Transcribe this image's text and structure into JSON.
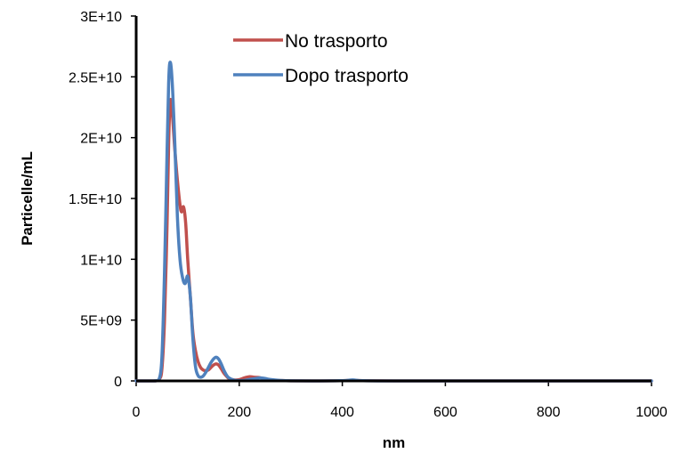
{
  "chart_data": {
    "type": "line",
    "title": "",
    "xlabel": "nm",
    "ylabel": "Particelle/mL",
    "xlim": [
      0,
      1000
    ],
    "ylim": [
      0,
      30000000000
    ],
    "x_ticks": [
      0,
      200,
      400,
      600,
      800,
      1000
    ],
    "x_tick_labels": [
      "0",
      "200",
      "400",
      "600",
      "800",
      "1000"
    ],
    "y_ticks": [
      0,
      5000000000,
      10000000000,
      15000000000,
      20000000000,
      25000000000,
      30000000000
    ],
    "y_tick_labels": [
      "0",
      "5E+09",
      "1E+10",
      "1.5E+10",
      "2E+10",
      "2.5E+10",
      "3E+10"
    ],
    "grid": false,
    "legend_position": "top-center",
    "series": [
      {
        "name": "No trasporto",
        "color": "#c0504d",
        "x": [
          0,
          30,
          40,
          45,
          50,
          55,
          60,
          63,
          66,
          70,
          75,
          80,
          85,
          88,
          92,
          96,
          100,
          105,
          110,
          115,
          120,
          125,
          130,
          135,
          140,
          145,
          150,
          155,
          160,
          165,
          170,
          175,
          180,
          190,
          200,
          210,
          220,
          230,
          240,
          250,
          260,
          280,
          300,
          350,
          400,
          420,
          440,
          500,
          600,
          700,
          800,
          900,
          1000
        ],
        "y": [
          0,
          0,
          20000000,
          150000000,
          1000000000,
          5000000000,
          13000000000,
          19500000000,
          23000000000,
          22000000000,
          19000000000,
          16500000000,
          14500000000,
          13900000000,
          14300000000,
          13000000000,
          10000000000,
          7000000000,
          4000000000,
          2500000000,
          1600000000,
          1100000000,
          900000000,
          850000000,
          900000000,
          1100000000,
          1300000000,
          1400000000,
          1300000000,
          1000000000,
          650000000,
          400000000,
          200000000,
          80000000,
          100000000,
          250000000,
          350000000,
          300000000,
          270000000,
          150000000,
          60000000,
          30000000,
          10000000,
          0,
          20000000,
          40000000,
          20000000,
          0,
          0,
          0,
          0,
          0,
          0
        ]
      },
      {
        "name": "Dopo trasporto",
        "color": "#4f81bd",
        "x": [
          0,
          30,
          40,
          45,
          50,
          55,
          60,
          63,
          66,
          70,
          75,
          80,
          85,
          90,
          95,
          100,
          105,
          110,
          115,
          120,
          125,
          130,
          135,
          140,
          145,
          150,
          155,
          160,
          165,
          170,
          175,
          180,
          190,
          200,
          210,
          220,
          230,
          240,
          250,
          260,
          280,
          300,
          350,
          400,
          420,
          440,
          500,
          600,
          700,
          800,
          900,
          1000
        ],
        "y": [
          0,
          0,
          20000000,
          200000000,
          2000000000,
          9000000000,
          19000000000,
          24500000000,
          26200000000,
          24500000000,
          19500000000,
          13500000000,
          10000000000,
          8500000000,
          8000000000,
          8600000000,
          7000000000,
          3500000000,
          1200000000,
          450000000,
          300000000,
          400000000,
          700000000,
          1100000000,
          1500000000,
          1800000000,
          1950000000,
          1800000000,
          1400000000,
          900000000,
          500000000,
          250000000,
          60000000,
          30000000,
          40000000,
          120000000,
          180000000,
          250000000,
          200000000,
          120000000,
          40000000,
          10000000,
          0,
          20000000,
          80000000,
          20000000,
          0,
          0,
          0,
          0,
          0,
          0
        ]
      }
    ]
  }
}
